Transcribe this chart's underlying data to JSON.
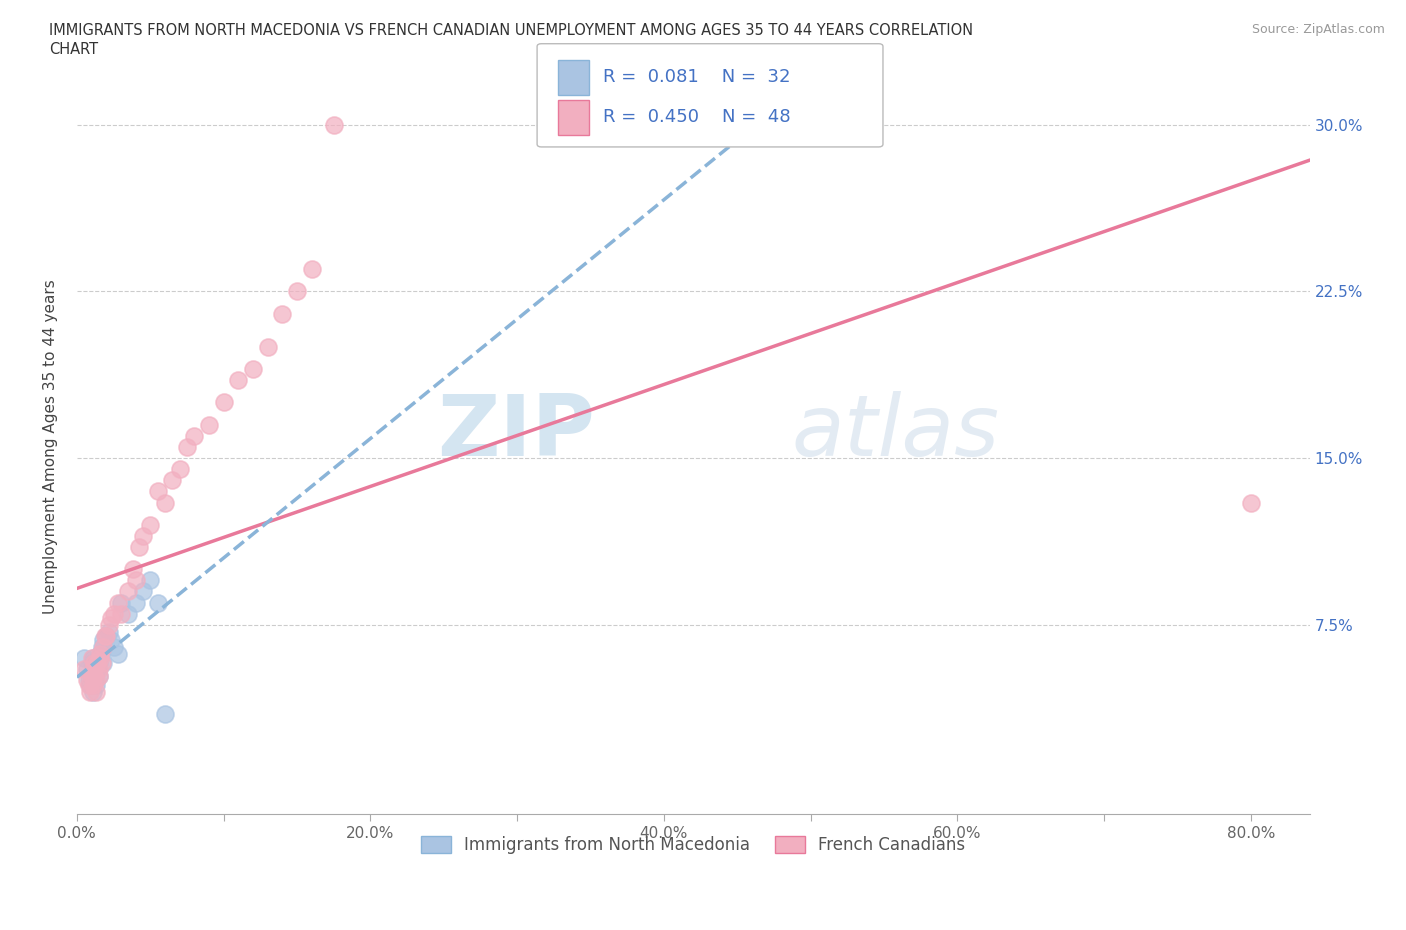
{
  "title_line1": "IMMIGRANTS FROM NORTH MACEDONIA VS FRENCH CANADIAN UNEMPLOYMENT AMONG AGES 35 TO 44 YEARS CORRELATION",
  "title_line2": "CHART",
  "source": "Source: ZipAtlas.com",
  "ylabel": "Unemployment Among Ages 35 to 44 years",
  "xlim": [
    0.0,
    0.84
  ],
  "ylim": [
    -0.01,
    0.32
  ],
  "blue_R": 0.081,
  "blue_N": 32,
  "pink_R": 0.45,
  "pink_N": 48,
  "blue_color": "#aac4e2",
  "pink_color": "#f2afc0",
  "blue_line_color": "#8ab4d8",
  "pink_line_color": "#e8799a",
  "legend_blue_label": "Immigrants from North Macedonia",
  "legend_pink_label": "French Canadians",
  "watermark_zip": "ZIP",
  "watermark_atlas": "atlas",
  "blue_x": [
    0.005,
    0.007,
    0.008,
    0.009,
    0.01,
    0.01,
    0.011,
    0.011,
    0.012,
    0.012,
    0.013,
    0.013,
    0.014,
    0.015,
    0.015,
    0.016,
    0.016,
    0.017,
    0.018,
    0.018,
    0.02,
    0.022,
    0.023,
    0.025,
    0.028,
    0.03,
    0.035,
    0.04,
    0.045,
    0.05,
    0.055,
    0.06
  ],
  "blue_y": [
    0.06,
    0.055,
    0.05,
    0.048,
    0.052,
    0.058,
    0.045,
    0.06,
    0.055,
    0.052,
    0.058,
    0.048,
    0.055,
    0.052,
    0.058,
    0.06,
    0.062,
    0.065,
    0.058,
    0.068,
    0.07,
    0.072,
    0.068,
    0.065,
    0.062,
    0.085,
    0.08,
    0.085,
    0.09,
    0.095,
    0.085,
    0.035
  ],
  "pink_x": [
    0.005,
    0.007,
    0.008,
    0.009,
    0.01,
    0.01,
    0.011,
    0.011,
    0.012,
    0.012,
    0.013,
    0.013,
    0.014,
    0.015,
    0.015,
    0.016,
    0.016,
    0.017,
    0.018,
    0.019,
    0.02,
    0.022,
    0.023,
    0.025,
    0.028,
    0.03,
    0.035,
    0.038,
    0.04,
    0.042,
    0.045,
    0.05,
    0.055,
    0.06,
    0.065,
    0.07,
    0.075,
    0.08,
    0.09,
    0.1,
    0.11,
    0.12,
    0.13,
    0.14,
    0.15,
    0.16,
    0.175,
    0.8
  ],
  "pink_y": [
    0.055,
    0.05,
    0.048,
    0.045,
    0.052,
    0.06,
    0.048,
    0.055,
    0.052,
    0.058,
    0.05,
    0.045,
    0.058,
    0.055,
    0.052,
    0.06,
    0.062,
    0.058,
    0.065,
    0.07,
    0.07,
    0.075,
    0.078,
    0.08,
    0.085,
    0.08,
    0.09,
    0.1,
    0.095,
    0.11,
    0.115,
    0.12,
    0.135,
    0.13,
    0.14,
    0.145,
    0.155,
    0.16,
    0.165,
    0.175,
    0.185,
    0.19,
    0.2,
    0.215,
    0.225,
    0.235,
    0.3,
    0.13
  ],
  "xtick_vals": [
    0.0,
    0.1,
    0.2,
    0.3,
    0.4,
    0.5,
    0.6,
    0.7,
    0.8
  ],
  "xtick_labels": [
    "0.0%",
    "",
    "20.0%",
    "",
    "40.0%",
    "",
    "60.0%",
    "",
    "80.0%"
  ],
  "ytick_vals": [
    0.075,
    0.15,
    0.225,
    0.3
  ],
  "ytick_labels": [
    "7.5%",
    "15.0%",
    "22.5%",
    "30.0%"
  ]
}
